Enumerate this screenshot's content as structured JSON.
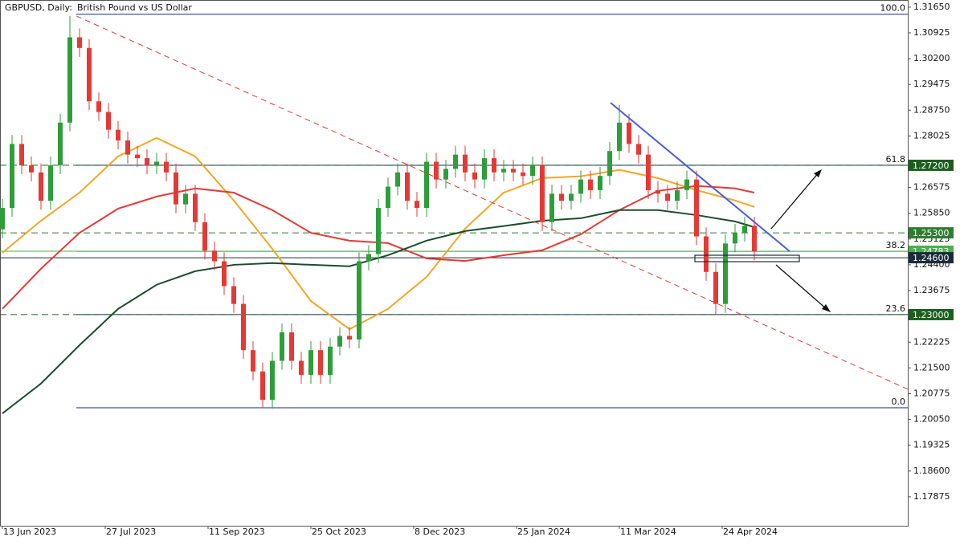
{
  "chart_data": {
    "type": "candlestick",
    "symbol": "GBPUSD, Daily:",
    "description": "British Pound vs US Dollar",
    "up_color": "#2e9e3a",
    "down_color": "#e53935",
    "xlim": [
      -0.75,
      281.75
    ],
    "ylim": [
      1.1706,
      1.3185
    ],
    "xticks": [
      {
        "value": 0,
        "label": "13 Jun 2023"
      },
      {
        "value": 32,
        "label": "27 Jul 2023"
      },
      {
        "value": 64,
        "label": "11 Sep 2023"
      },
      {
        "value": 96,
        "label": "25 Oct 2023"
      },
      {
        "value": 128,
        "label": "8 Dec 2023"
      },
      {
        "value": 160,
        "label": "25 Jan 2024"
      },
      {
        "value": 192,
        "label": "11 Mar 2024"
      },
      {
        "value": 224,
        "label": "24 Apr 2024"
      }
    ],
    "yticks": [
      {
        "value": 1.3165,
        "label": "1.31650"
      },
      {
        "value": 1.30925,
        "label": "1.30925"
      },
      {
        "value": 1.302,
        "label": "1.30200"
      },
      {
        "value": 1.29475,
        "label": "1.29475"
      },
      {
        "value": 1.2875,
        "label": "1.28750"
      },
      {
        "value": 1.28025,
        "label": "1.28025"
      },
      {
        "value": 1.26575,
        "label": "1.26575"
      },
      {
        "value": 1.2585,
        "label": "1.25850"
      },
      {
        "value": 1.25125,
        "label": "1.25125"
      },
      {
        "value": 1.244,
        "label": "1.24400"
      },
      {
        "value": 1.23675,
        "label": "1.23675"
      },
      {
        "value": 1.22225,
        "label": "1.22225"
      },
      {
        "value": 1.215,
        "label": "1.21500"
      },
      {
        "value": 1.20775,
        "label": "1.20775"
      },
      {
        "value": 1.2005,
        "label": "1.20050"
      },
      {
        "value": 1.19325,
        "label": "1.19325"
      },
      {
        "value": 1.186,
        "label": "1.18600"
      },
      {
        "value": 1.17875,
        "label": "1.17875"
      }
    ],
    "x": [
      0,
      3,
      6,
      9,
      12,
      15,
      18,
      21,
      24,
      27,
      30,
      33,
      36,
      39,
      42,
      45,
      48,
      51,
      54,
      57,
      60,
      63,
      66,
      69,
      72,
      75,
      78,
      81,
      84,
      87,
      90,
      93,
      96,
      99,
      102,
      105,
      108,
      111,
      114,
      117,
      120,
      123,
      126,
      129,
      132,
      135,
      138,
      141,
      144,
      147,
      150,
      153,
      156,
      159,
      162,
      165,
      168,
      171,
      174,
      177,
      180,
      183,
      186,
      189,
      192,
      195,
      198,
      201,
      204,
      207,
      210,
      213,
      216,
      219,
      222,
      225,
      228,
      231,
      234
    ],
    "open": [
      1.254,
      1.26,
      1.278,
      1.272,
      1.27,
      1.262,
      1.272,
      1.284,
      1.308,
      1.305,
      1.29,
      1.287,
      1.282,
      1.279,
      1.275,
      1.274,
      1.272,
      1.273,
      1.27,
      1.261,
      1.264,
      1.256,
      1.248,
      1.245,
      1.238,
      1.233,
      1.22,
      1.214,
      1.206,
      1.217,
      1.225,
      1.217,
      1.213,
      1.22,
      1.213,
      1.221,
      1.224,
      1.223,
      1.245,
      1.247,
      1.26,
      1.266,
      1.27,
      1.262,
      1.26,
      1.273,
      1.268,
      1.271,
      1.275,
      1.27,
      1.268,
      1.274,
      1.27,
      1.271,
      1.27,
      1.269,
      1.272,
      1.256,
      1.264,
      1.262,
      1.264,
      1.268,
      1.265,
      1.269,
      1.276,
      1.284,
      1.278,
      1.275,
      1.265,
      1.264,
      1.262,
      1.265,
      1.268,
      1.252,
      1.242,
      1.233,
      1.25,
      1.253,
      1.255
    ],
    "high": [
      1.2625,
      1.2805,
      1.2805,
      1.2745,
      1.2725,
      1.2745,
      1.2865,
      1.314,
      1.3105,
      1.3075,
      1.2925,
      1.2895,
      1.2845,
      1.2815,
      1.2775,
      1.2765,
      1.2755,
      1.2755,
      1.2725,
      1.2665,
      1.2665,
      1.2585,
      1.2505,
      1.2475,
      1.2405,
      1.2355,
      1.2225,
      1.2165,
      1.2195,
      1.2275,
      1.2275,
      1.2195,
      1.2225,
      1.2225,
      1.2235,
      1.2265,
      1.2265,
      1.2475,
      1.2495,
      1.2625,
      1.2685,
      1.2725,
      1.2725,
      1.2645,
      1.2755,
      1.2755,
      1.2735,
      1.2775,
      1.2775,
      1.2725,
      1.2765,
      1.2765,
      1.2735,
      1.2735,
      1.2725,
      1.2745,
      1.2745,
      1.2665,
      1.2665,
      1.2665,
      1.2705,
      1.2705,
      1.2715,
      1.2785,
      1.289,
      1.2865,
      1.2805,
      1.2775,
      1.2675,
      1.2665,
      1.2675,
      1.2705,
      1.2705,
      1.2545,
      1.2445,
      1.2525,
      1.2555,
      1.2575,
      1.2575
    ],
    "low": [
      1.2515,
      1.2575,
      1.2695,
      1.2675,
      1.2595,
      1.2595,
      1.2695,
      1.2815,
      1.3025,
      1.2875,
      1.2845,
      1.2795,
      1.2765,
      1.2725,
      1.2715,
      1.2695,
      1.2695,
      1.2675,
      1.2585,
      1.2585,
      1.2535,
      1.2455,
      1.2425,
      1.2355,
      1.2305,
      1.2175,
      1.2115,
      1.2037,
      1.2035,
      1.2145,
      1.2145,
      1.2105,
      1.2105,
      1.2105,
      1.2105,
      1.2185,
      1.2205,
      1.2205,
      1.2425,
      1.2445,
      1.2575,
      1.2635,
      1.2595,
      1.2575,
      1.2575,
      1.2655,
      1.2655,
      1.2685,
      1.2675,
      1.2655,
      1.2655,
      1.2675,
      1.2675,
      1.2675,
      1.2665,
      1.2665,
      1.2535,
      1.2535,
      1.2595,
      1.2595,
      1.2615,
      1.2625,
      1.2625,
      1.2665,
      1.2735,
      1.2755,
      1.2725,
      1.2625,
      1.2615,
      1.2595,
      1.2595,
      1.2625,
      1.2495,
      1.2395,
      1.23,
      1.2305,
      1.2475,
      1.2505,
      1.2453
    ],
    "close": [
      1.26,
      1.278,
      1.272,
      1.27,
      1.262,
      1.272,
      1.284,
      1.308,
      1.305,
      1.29,
      1.287,
      1.282,
      1.279,
      1.275,
      1.274,
      1.272,
      1.273,
      1.27,
      1.261,
      1.264,
      1.256,
      1.248,
      1.245,
      1.238,
      1.233,
      1.22,
      1.214,
      1.206,
      1.217,
      1.225,
      1.217,
      1.213,
      1.22,
      1.213,
      1.221,
      1.224,
      1.223,
      1.245,
      1.247,
      1.26,
      1.266,
      1.27,
      1.262,
      1.26,
      1.273,
      1.268,
      1.271,
      1.275,
      1.27,
      1.268,
      1.274,
      1.27,
      1.271,
      1.27,
      1.269,
      1.272,
      1.256,
      1.264,
      1.262,
      1.264,
      1.268,
      1.265,
      1.269,
      1.276,
      1.284,
      1.278,
      1.275,
      1.265,
      1.264,
      1.262,
      1.265,
      1.268,
      1.252,
      1.242,
      1.233,
      1.25,
      1.253,
      1.255,
      1.2478
    ],
    "moving_averages": [
      {
        "color": "#f5a623",
        "x": [
          0,
          12,
          24,
          36,
          48,
          60,
          72,
          84,
          96,
          108,
          120,
          132,
          144,
          156,
          168,
          180,
          192,
          204,
          216,
          228,
          234
        ],
        "values": [
          1.2474,
          1.2564,
          1.2643,
          1.2745,
          1.2797,
          1.2745,
          1.2621,
          1.2485,
          1.2338,
          1.2259,
          1.2316,
          1.2406,
          1.2542,
          1.2643,
          1.2684,
          1.2689,
          1.2707,
          1.2684,
          1.265,
          1.2621,
          1.2603
        ]
      },
      {
        "color": "#e53935",
        "x": [
          0,
          12,
          24,
          36,
          48,
          60,
          72,
          84,
          96,
          108,
          120,
          132,
          144,
          156,
          168,
          180,
          192,
          204,
          216,
          228,
          234
        ],
        "values": [
          1.2316,
          1.2429,
          1.253,
          1.2598,
          1.2632,
          1.2655,
          1.2643,
          1.2594,
          1.253,
          1.2508,
          1.2501,
          1.2458,
          1.2451,
          1.2467,
          1.2481,
          1.2526,
          1.2594,
          1.2648,
          1.2662,
          1.2655,
          1.2643
        ]
      },
      {
        "color": "#1b4d2e",
        "x": [
          0,
          12,
          24,
          36,
          48,
          60,
          72,
          84,
          96,
          108,
          120,
          132,
          144,
          156,
          168,
          180,
          192,
          204,
          216,
          228,
          234
        ],
        "values": [
          1.2022,
          1.2106,
          1.2214,
          1.2316,
          1.2384,
          1.2422,
          1.244,
          1.2445,
          1.244,
          1.2436,
          1.2467,
          1.2508,
          1.2535,
          1.2549,
          1.2564,
          1.2571,
          1.2594,
          1.2594,
          1.258,
          1.2562,
          1.2546
        ]
      }
    ],
    "trendlines": [
      {
        "color": "#e53935",
        "dashed": true,
        "x": [
          23,
          281.75
        ],
        "values": [
          1.314,
          1.209
        ]
      },
      {
        "color": "#4a5fd6",
        "dashed": false,
        "x": [
          189.25,
          245
        ],
        "values": [
          1.2896,
          1.2478
        ]
      }
    ],
    "fibonacci": {
      "x_start": 23,
      "color": "#1a237e",
      "levels": [
        {
          "label": "100.0",
          "price": 1.3145
        },
        {
          "label": "61.8",
          "price": 1.272
        },
        {
          "label": "38.2",
          "price": 1.2478
        },
        {
          "label": "23.6",
          "price": 1.23
        },
        {
          "label": "0.0",
          "price": 1.2038
        }
      ]
    },
    "levels": [
      {
        "price": 1.272,
        "label": "1.27200",
        "dashed": true,
        "color": "#1b5e20"
      },
      {
        "price": 1.253,
        "label": "1.25300",
        "dashed": true,
        "color": "#2e7d32"
      },
      {
        "price": 1.24783,
        "label": "1.24783",
        "dashed": false,
        "color": "#4caf50"
      },
      {
        "price": 1.246,
        "label": "1.24600",
        "dashed": false,
        "color": "#1c2b3a"
      },
      {
        "price": 1.23,
        "label": "1.23000",
        "dashed": true,
        "color": "#1b5e20"
      }
    ]
  }
}
